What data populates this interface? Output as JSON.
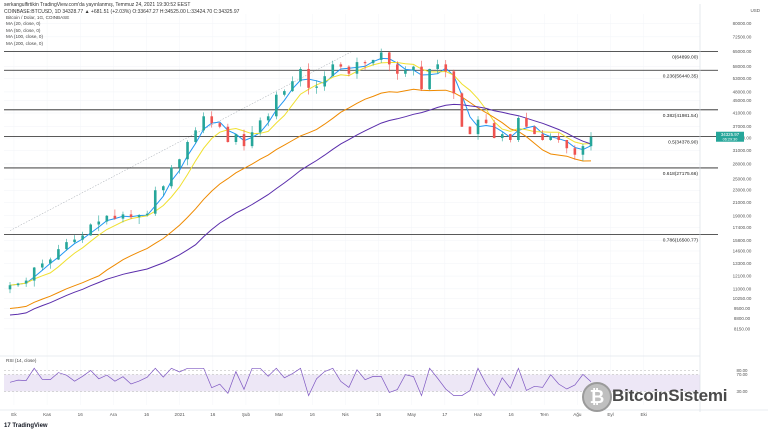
{
  "header": {
    "line1": "serkangulfirtikin TradingView.com'da yayınlanmış, Temmuz 24, 2021 19:30:52 EEST",
    "line2": "COINBASE:BTCUSD, 1D 34328.77 ▲ +681.51 (+2.03%) O:33647.27 H:34525.00 L:33424.70 C:34325.97"
  },
  "indicators": [
    {
      "label": "Bitcoin / Dolar, 1G, COINBASE",
      "color": "#131722"
    },
    {
      "label": "MA (20, close, 0)",
      "color": "#2196f3"
    },
    {
      "label": "MA (50, close, 0)",
      "color": "#f0e030"
    },
    {
      "label": "MA (100, close, 0)",
      "color": "#ef8a00"
    },
    {
      "label": "MA (200, close, 0)",
      "color": "#5a2dab"
    }
  ],
  "rsi_label": "RSI (14, close)",
  "footer_logo": "17 TradingView",
  "watermark": "BitcoinSistemi",
  "watermark_symbol": "₿",
  "currency_badge": "USD",
  "chart_data": {
    "type": "candlestick",
    "price_axis": {
      "scale": "log",
      "ticks": [
        "80000.00",
        "72500.00",
        "65000.00",
        "58000.00",
        "53000.00",
        "48000.00",
        "45000.00",
        "41000.00",
        "37000.00",
        "34000.00",
        "31000.00",
        "28000.00",
        "25000.00",
        "23000.00",
        "21000.00",
        "19000.00",
        "17400.00",
        "15800.00",
        "14600.00",
        "13300.00",
        "12100.00",
        "11000.00",
        "10250.00",
        "9500.00",
        "8800.00",
        "8150.00"
      ]
    },
    "time_axis": {
      "ticks": [
        "Ek",
        "Kas",
        "16",
        "Ara",
        "16",
        "2021",
        "16",
        "Şub",
        "Mar",
        "16",
        "Nis",
        "16",
        "May",
        "17",
        "Haz",
        "16",
        "Tem",
        "Ağu",
        "Eyl",
        "Eki"
      ]
    },
    "fib_levels": [
      {
        "label": "0(64899.00)",
        "value": 64899
      },
      {
        "label": "0.236(56440.35)",
        "value": 56440
      },
      {
        "label": "0.382(41981.54)",
        "value": 41981
      },
      {
        "label": "0.5(34378.90)",
        "value": 34378
      },
      {
        "label": "0.618(27175.66)",
        "value": 27175
      },
      {
        "label": "0.786(16500.77)",
        "value": 16500
      }
    ],
    "current_price": {
      "label": "34325.97",
      "sublabel": "06:29:30",
      "value": 34326
    },
    "ma_series": [
      {
        "name": "MA 20",
        "color": "#2196f3"
      },
      {
        "name": "MA 50",
        "color": "#f0e030"
      },
      {
        "name": "MA 100",
        "color": "#ef8a00"
      },
      {
        "name": "MA 200",
        "color": "#5a2dab"
      }
    ],
    "closes": [
      11300,
      11450,
      11700,
      12900,
      13300,
      13700,
      14800,
      15600,
      15900,
      16400,
      17800,
      18200,
      19000,
      18600,
      19200,
      18800,
      19100,
      19300,
      23000,
      23700,
      27300,
      29000,
      33000,
      36000,
      40000,
      38000,
      37000,
      33000,
      35000,
      32000,
      35500,
      38800,
      40000,
      47000,
      48300,
      52000,
      57000,
      49500,
      50000,
      54000,
      59000,
      58000,
      55000,
      60000,
      59500,
      61000,
      64500,
      59000,
      55000,
      56500,
      58000,
      49000,
      57000,
      59000,
      56000,
      47500,
      37000,
      35000,
      39000,
      38000,
      34000,
      35000,
      33500,
      39500,
      37000,
      35000,
      33500,
      34500,
      33500,
      31500,
      30000,
      32000,
      34300
    ],
    "rsi": {
      "range": [
        0,
        100
      ],
      "levels": [
        80,
        70,
        30
      ],
      "latest": 53
    }
  }
}
